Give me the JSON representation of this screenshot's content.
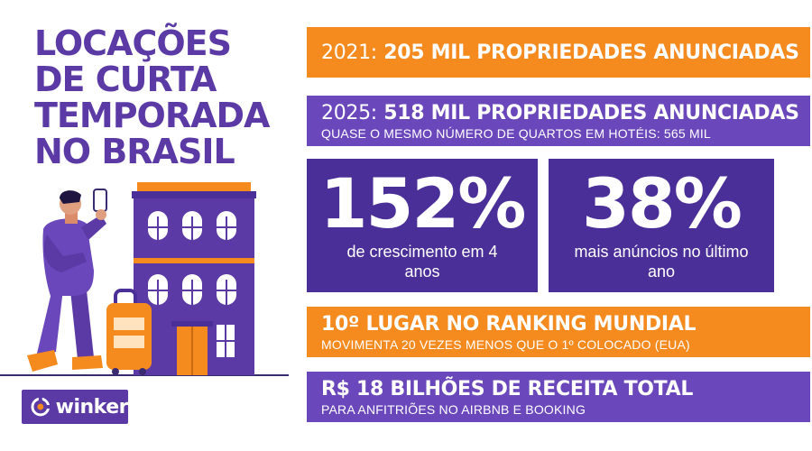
{
  "title": {
    "lines": [
      "LOCAÇÕES",
      "DE CURTA",
      "TEMPORADA",
      "NO BRASIL"
    ]
  },
  "banners": {
    "b1": {
      "year": "2021:",
      "text": "205 MIL PROPRIEDADES ANUNCIADAS"
    },
    "b2": {
      "year": "2025:",
      "text": "518 MIL PROPRIEDADES ANUNCIADAS",
      "sub": "QUASE O MESMO NÚMERO DE QUARTOS EM HOTÉIS: 565 MIL"
    },
    "b3": {
      "text": "10º LUGAR NO RANKING MUNDIAL",
      "sub": "MOVIMENTA 20 VEZES MENOS QUE O 1º COLOCADO (EUA)"
    },
    "b4": {
      "text": "R$ 18 BILHÕES DE RECEITA TOTAL",
      "sub": "PARA ANFITRIÕES NO AIRBNB E BOOKING"
    }
  },
  "stats": {
    "s1": {
      "value": "152%",
      "label": "de crescimento em 4 anos"
    },
    "s2": {
      "value": "38%",
      "label": "mais anúncios no último ano"
    }
  },
  "logo": {
    "name": "winker",
    "icon": "winker-logo-icon"
  },
  "colors": {
    "purple": "#6a47bb",
    "dark_purple": "#4b2f99",
    "title_purple": "#5b3aa6",
    "orange": "#f58a1f"
  }
}
